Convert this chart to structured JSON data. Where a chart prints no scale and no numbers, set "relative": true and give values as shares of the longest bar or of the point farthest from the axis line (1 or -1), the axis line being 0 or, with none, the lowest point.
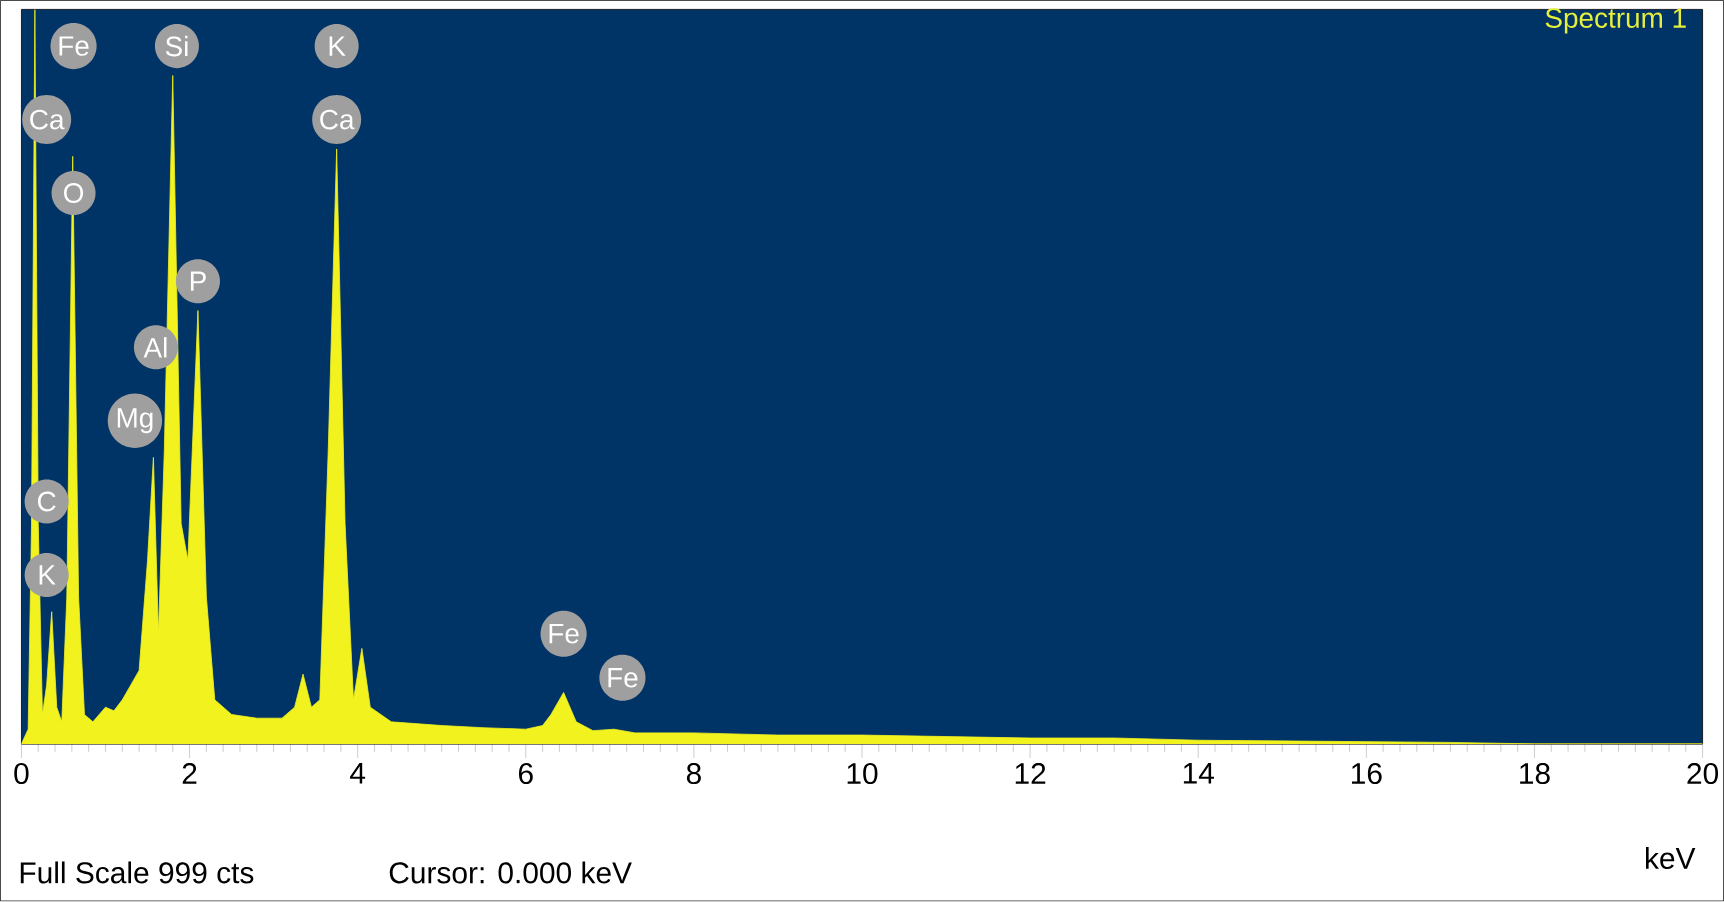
{
  "chart_data": {
    "type": "area",
    "title": "Spectrum 1",
    "xlabel": "keV",
    "relative": true,
    "color": "#f2f21e",
    "xlim": [
      0,
      20
    ],
    "xticks": [
      0,
      2,
      4,
      6,
      8,
      10,
      12,
      14,
      16,
      18,
      20
    ],
    "x": [
      0.0,
      0.08,
      0.12,
      0.16,
      0.2,
      0.25,
      0.3,
      0.36,
      0.42,
      0.48,
      0.54,
      0.61,
      0.68,
      0.75,
      0.85,
      1.0,
      1.1,
      1.2,
      1.3,
      1.4,
      1.5,
      1.57,
      1.63,
      1.7,
      1.8,
      1.9,
      1.98,
      2.1,
      2.2,
      2.3,
      2.5,
      2.8,
      3.1,
      3.25,
      3.35,
      3.45,
      3.55,
      3.65,
      3.75,
      3.85,
      3.95,
      4.05,
      4.15,
      4.4,
      5.0,
      5.5,
      6.0,
      6.2,
      6.3,
      6.45,
      6.6,
      6.8,
      7.05,
      7.3,
      8,
      9,
      10,
      11,
      12,
      13,
      14,
      15,
      16,
      17,
      18,
      20
    ],
    "values": [
      0,
      0.02,
      0.3,
      1.0,
      0.3,
      0.04,
      0.08,
      0.18,
      0.05,
      0.03,
      0.2,
      0.8,
      0.2,
      0.04,
      0.03,
      0.05,
      0.045,
      0.06,
      0.08,
      0.1,
      0.25,
      0.39,
      0.15,
      0.4,
      0.91,
      0.3,
      0.25,
      0.59,
      0.2,
      0.06,
      0.04,
      0.035,
      0.035,
      0.05,
      0.095,
      0.05,
      0.06,
      0.4,
      0.81,
      0.3,
      0.06,
      0.13,
      0.05,
      0.03,
      0.025,
      0.022,
      0.02,
      0.025,
      0.04,
      0.07,
      0.03,
      0.018,
      0.02,
      0.015,
      0.015,
      0.012,
      0.012,
      0.01,
      0.008,
      0.008,
      0.005,
      0.004,
      0.003,
      0.002,
      0,
      0
    ],
    "annotations": [
      "Full Scale 999 cts",
      "Cursor: 0.000 keV",
      {
        "text": "Fe",
        "x": 0.62,
        "y": 0.95
      },
      {
        "text": "Ca",
        "x": 0.3,
        "y": 0.85
      },
      {
        "text": "O",
        "x": 0.62,
        "y": 0.75
      },
      {
        "text": "C",
        "x": 0.3,
        "y": 0.33
      },
      {
        "text": "K",
        "x": 0.3,
        "y": 0.23
      },
      {
        "text": "Si",
        "x": 1.85,
        "y": 0.95
      },
      {
        "text": "P",
        "x": 2.1,
        "y": 0.63
      },
      {
        "text": "Al",
        "x": 1.6,
        "y": 0.54
      },
      {
        "text": "Mg",
        "x": 1.35,
        "y": 0.44
      },
      {
        "text": "K",
        "x": 3.75,
        "y": 0.95
      },
      {
        "text": "Ca",
        "x": 3.75,
        "y": 0.85
      },
      {
        "text": "Fe",
        "x": 6.45,
        "y": 0.15
      },
      {
        "text": "Fe",
        "x": 7.15,
        "y": 0.09
      }
    ]
  }
}
